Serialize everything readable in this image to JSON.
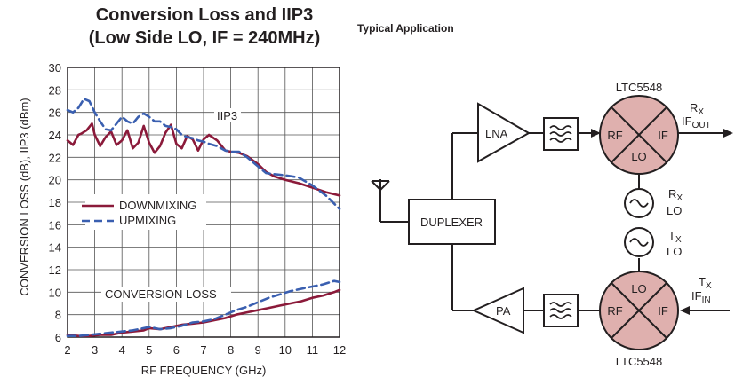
{
  "title_line1": "Conversion Loss and IIP3",
  "title_line2": "(Low Side LO, IF = 240MHz)",
  "app_title": "Typical Application",
  "chart_data": {
    "type": "line",
    "xlabel": "RF FREQUENCY (GHz)",
    "ylabel": "CONVERSION LOSS (dB), IIP3 (dBm)",
    "xlim": [
      2,
      12
    ],
    "ylim": [
      6,
      30
    ],
    "x_ticks": [
      "2",
      "3",
      "4",
      "5",
      "6",
      "7",
      "8",
      "9",
      "10",
      "11",
      "12"
    ],
    "y_ticks": [
      "6",
      "8",
      "10",
      "12",
      "14",
      "16",
      "18",
      "20",
      "22",
      "24",
      "26",
      "28",
      "30"
    ],
    "grid": true,
    "legend": [
      {
        "label": "DOWNMIXING",
        "color": "#8b1a3a",
        "dash": "solid"
      },
      {
        "label": "UPMIXING",
        "color": "#3a5fb0",
        "dash": "dashed"
      }
    ],
    "annotations": [
      "IIP3",
      "CONVERSION LOSS"
    ],
    "series": [
      {
        "name": "DOWNMIXING",
        "group": "IIP3",
        "color": "#8b1a3a",
        "dash": "solid",
        "x": [
          2.0,
          2.2,
          2.4,
          2.5,
          2.7,
          2.9,
          3.0,
          3.2,
          3.4,
          3.6,
          3.8,
          4.0,
          4.2,
          4.4,
          4.6,
          4.8,
          5.0,
          5.2,
          5.4,
          5.6,
          5.8,
          6.0,
          6.2,
          6.4,
          6.6,
          6.8,
          7.0,
          7.2,
          7.5,
          7.8,
          8.0,
          8.3,
          8.6,
          9.0,
          9.3,
          9.6,
          10.0,
          10.5,
          11.0,
          11.5,
          12.0
        ],
        "y": [
          23.5,
          23.1,
          24.0,
          24.1,
          24.4,
          25.0,
          24.0,
          23.0,
          23.8,
          24.3,
          23.1,
          23.5,
          24.4,
          22.8,
          23.3,
          24.8,
          23.3,
          22.4,
          23.0,
          24.2,
          24.9,
          23.2,
          22.8,
          23.9,
          23.6,
          22.6,
          23.6,
          24.0,
          23.5,
          22.6,
          22.5,
          22.4,
          22.1,
          21.4,
          20.7,
          20.3,
          20.0,
          19.7,
          19.3,
          18.9,
          18.6
        ]
      },
      {
        "name": "UPMIXING",
        "group": "IIP3",
        "color": "#3a5fb0",
        "dash": "dashed",
        "x": [
          2.0,
          2.2,
          2.4,
          2.6,
          2.8,
          3.0,
          3.2,
          3.4,
          3.6,
          3.8,
          4.0,
          4.2,
          4.4,
          4.6,
          4.8,
          5.0,
          5.2,
          5.4,
          5.6,
          5.8,
          6.0,
          6.2,
          6.4,
          6.6,
          6.8,
          7.0,
          7.2,
          7.5,
          7.8,
          8.0,
          8.3,
          8.6,
          9.0,
          9.3,
          9.6,
          10.0,
          10.5,
          11.0,
          11.5,
          12.0
        ],
        "y": [
          26.2,
          26.0,
          26.4,
          27.2,
          27.0,
          26.0,
          25.2,
          24.5,
          24.4,
          25.0,
          25.6,
          25.2,
          25.0,
          25.6,
          25.9,
          25.6,
          25.2,
          25.2,
          24.8,
          24.7,
          24.5,
          24.0,
          23.8,
          23.7,
          23.5,
          23.4,
          23.2,
          23.0,
          22.6,
          22.5,
          22.5,
          22.0,
          21.2,
          20.6,
          20.5,
          20.4,
          20.2,
          19.5,
          18.6,
          17.4
        ]
      },
      {
        "name": "DOWNMIXING",
        "group": "CONVERSION LOSS",
        "color": "#8b1a3a",
        "dash": "solid",
        "x": [
          2.0,
          2.4,
          2.8,
          3.2,
          3.6,
          4.0,
          4.4,
          4.8,
          5.0,
          5.4,
          5.8,
          6.2,
          6.6,
          7.0,
          7.4,
          7.8,
          8.2,
          8.6,
          9.0,
          9.4,
          9.8,
          10.2,
          10.6,
          11.0,
          11.4,
          11.8,
          12.0
        ],
        "y": [
          6.2,
          6.1,
          6.1,
          6.2,
          6.2,
          6.4,
          6.5,
          6.6,
          6.8,
          6.7,
          6.9,
          7.1,
          7.2,
          7.3,
          7.5,
          7.7,
          8.0,
          8.2,
          8.4,
          8.6,
          8.8,
          9.0,
          9.2,
          9.5,
          9.7,
          10.0,
          10.2
        ]
      },
      {
        "name": "UPMIXING",
        "group": "CONVERSION LOSS",
        "color": "#3a5fb0",
        "dash": "dashed",
        "x": [
          2.0,
          2.4,
          2.8,
          3.2,
          3.6,
          4.0,
          4.4,
          4.8,
          5.0,
          5.4,
          5.8,
          6.2,
          6.6,
          7.0,
          7.4,
          7.8,
          8.2,
          8.6,
          9.0,
          9.4,
          9.8,
          10.2,
          10.6,
          11.0,
          11.4,
          11.8,
          12.0
        ],
        "y": [
          6.1,
          6.1,
          6.2,
          6.3,
          6.4,
          6.5,
          6.6,
          6.8,
          6.9,
          6.7,
          6.8,
          7.0,
          7.3,
          7.4,
          7.6,
          8.0,
          8.4,
          8.7,
          9.1,
          9.5,
          9.8,
          10.1,
          10.3,
          10.5,
          10.7,
          11.0,
          10.9
        ]
      }
    ]
  },
  "diagram": {
    "mixer_top_label": "LTC5548",
    "mixer_bottom_label": "LTC5548",
    "port_rf": "RF",
    "port_if": "IF",
    "port_lo": "LO",
    "lna_label": "LNA",
    "pa_label": "PA",
    "duplexer_label": "DUPLEXER",
    "rx_main": "R",
    "rx_sub": "X",
    "tx_main": "T",
    "tx_sub": "X",
    "if_main": "IF",
    "if_out_sub": "OUT",
    "if_in_sub": "IN",
    "lo_text": "LO",
    "mixer_fill": "#dfb0ae"
  }
}
